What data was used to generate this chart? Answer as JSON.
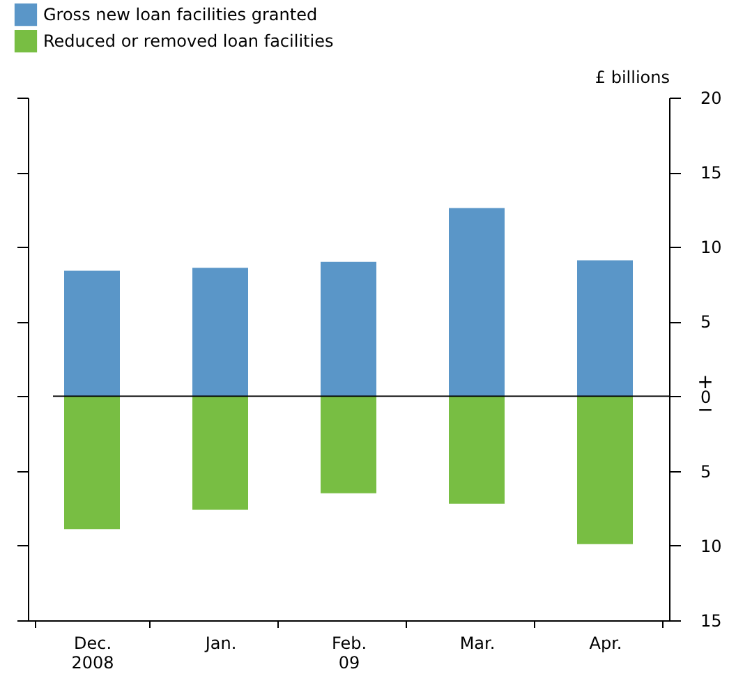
{
  "chart_data": {
    "type": "bar",
    "ylabel": "£ billions",
    "categories": [
      "Dec.\n2008",
      "Jan.",
      "Feb.\n09",
      "Mar.",
      "Apr."
    ],
    "series": [
      {
        "name": "Gross new loan facilities granted",
        "color": "#5a96c8",
        "values": [
          8.4,
          8.6,
          9.0,
          12.6,
          9.1
        ]
      },
      {
        "name": "Reduced or removed loan facilities",
        "color": "#78be43",
        "values": [
          -8.9,
          -7.6,
          -6.5,
          -7.2,
          -9.9
        ]
      }
    ],
    "stacked": true,
    "ylim": [
      -15,
      20
    ],
    "yticks": [
      {
        "value": -15,
        "label": "15"
      },
      {
        "value": -10,
        "label": "10"
      },
      {
        "value": -5,
        "label": "5"
      },
      0,
      5,
      10,
      15,
      20
    ],
    "ref_lines": [
      {
        "axis": "y",
        "value": 0,
        "color": "#000000"
      }
    ],
    "annotations": [
      "+",
      "−"
    ],
    "legend": "top left",
    "grid": false
  }
}
